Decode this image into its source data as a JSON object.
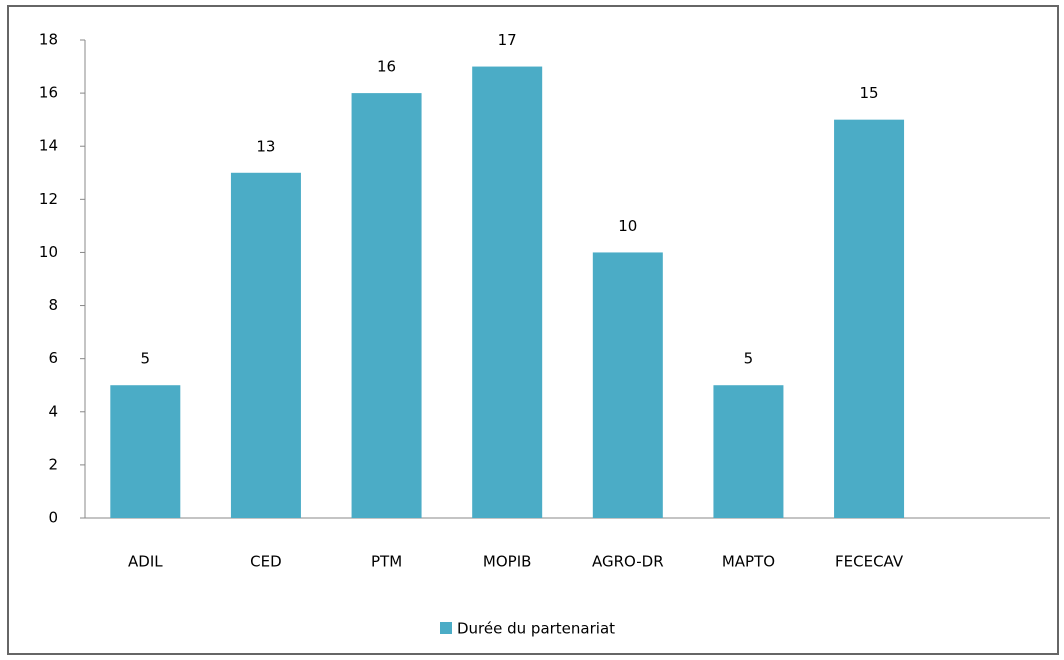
{
  "chart_data": {
    "type": "bar",
    "categories": [
      "ADIL",
      "CED",
      "PTM",
      "MOPIB",
      "AGRO-DR",
      "MAPTO",
      "FECECAV",
      null
    ],
    "series": [
      {
        "name": "Durée du partenariat",
        "color": "#4bacc6",
        "values": [
          5,
          13,
          16,
          17,
          10,
          5,
          15,
          null
        ]
      }
    ],
    "ylim": [
      0,
      18
    ],
    "yticks": [
      0,
      2,
      4,
      6,
      8,
      10,
      12,
      14,
      16,
      18
    ],
    "grid": false,
    "legend": "bottom",
    "data_labels": true
  }
}
